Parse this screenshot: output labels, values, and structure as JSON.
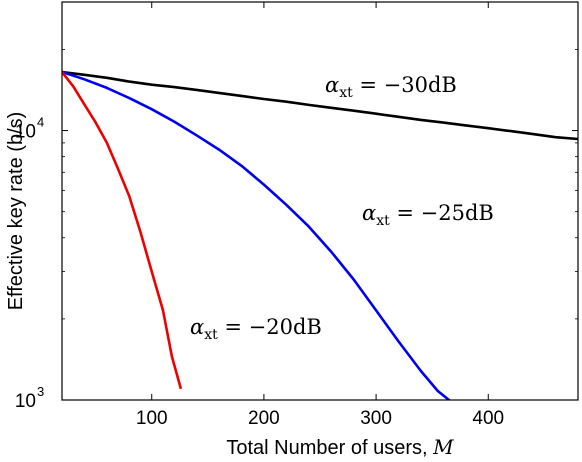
{
  "chart_data": {
    "type": "line",
    "title": "",
    "xlabel": "Total Number of users, ",
    "xlabel_symbol": "M",
    "ylabel": "Effective key rate (b/s)",
    "x_scale": "linear",
    "y_scale": "log",
    "xlim": [
      20,
      480
    ],
    "ylim": [
      1000,
      30000
    ],
    "x_ticks": [
      100,
      200,
      300,
      400
    ],
    "x_tick_labels": [
      "100",
      "200",
      "300",
      "400"
    ],
    "y_ticks": [
      1000,
      10000
    ],
    "y_tick_labels": [
      {
        "base": "10",
        "exp": "3"
      },
      {
        "base": "10",
        "exp": "4"
      }
    ],
    "grid": false,
    "legend": "none",
    "series": [
      {
        "label": {
          "symbol": "α",
          "sub": "xt",
          "text": " = −30dB"
        },
        "color": "#000000",
        "x": [
          20,
          40,
          60,
          80,
          100,
          120,
          140,
          160,
          180,
          200,
          220,
          240,
          260,
          280,
          300,
          320,
          340,
          360,
          380,
          400,
          420,
          440,
          460,
          480
        ],
        "y": [
          16500,
          16100,
          15700,
          15200,
          14800,
          14500,
          14150,
          13800,
          13450,
          13100,
          12800,
          12450,
          12150,
          11850,
          11550,
          11250,
          10950,
          10700,
          10450,
          10200,
          9950,
          9700,
          9450,
          9300
        ]
      },
      {
        "label": {
          "symbol": "α",
          "sub": "xt",
          "text": " = −25dB"
        },
        "color": "#0000ee",
        "x": [
          20,
          40,
          60,
          80,
          100,
          120,
          140,
          160,
          180,
          200,
          220,
          240,
          260,
          280,
          300,
          320,
          340,
          355,
          365,
          372
        ],
        "y": [
          16500,
          15500,
          14400,
          13200,
          12000,
          10800,
          9600,
          8500,
          7400,
          6300,
          5300,
          4400,
          3550,
          2800,
          2150,
          1650,
          1280,
          1080,
          1000,
          920
        ]
      },
      {
        "label": {
          "symbol": "α",
          "sub": "xt",
          "text": " = −20dB"
        },
        "color": "#ee0000",
        "x": [
          20,
          30,
          40,
          50,
          60,
          70,
          80,
          90,
          100,
          110,
          118,
          126
        ],
        "y": [
          16500,
          14600,
          12500,
          10700,
          9000,
          7200,
          5700,
          4200,
          3000,
          2150,
          1450,
          1100
        ]
      }
    ]
  }
}
